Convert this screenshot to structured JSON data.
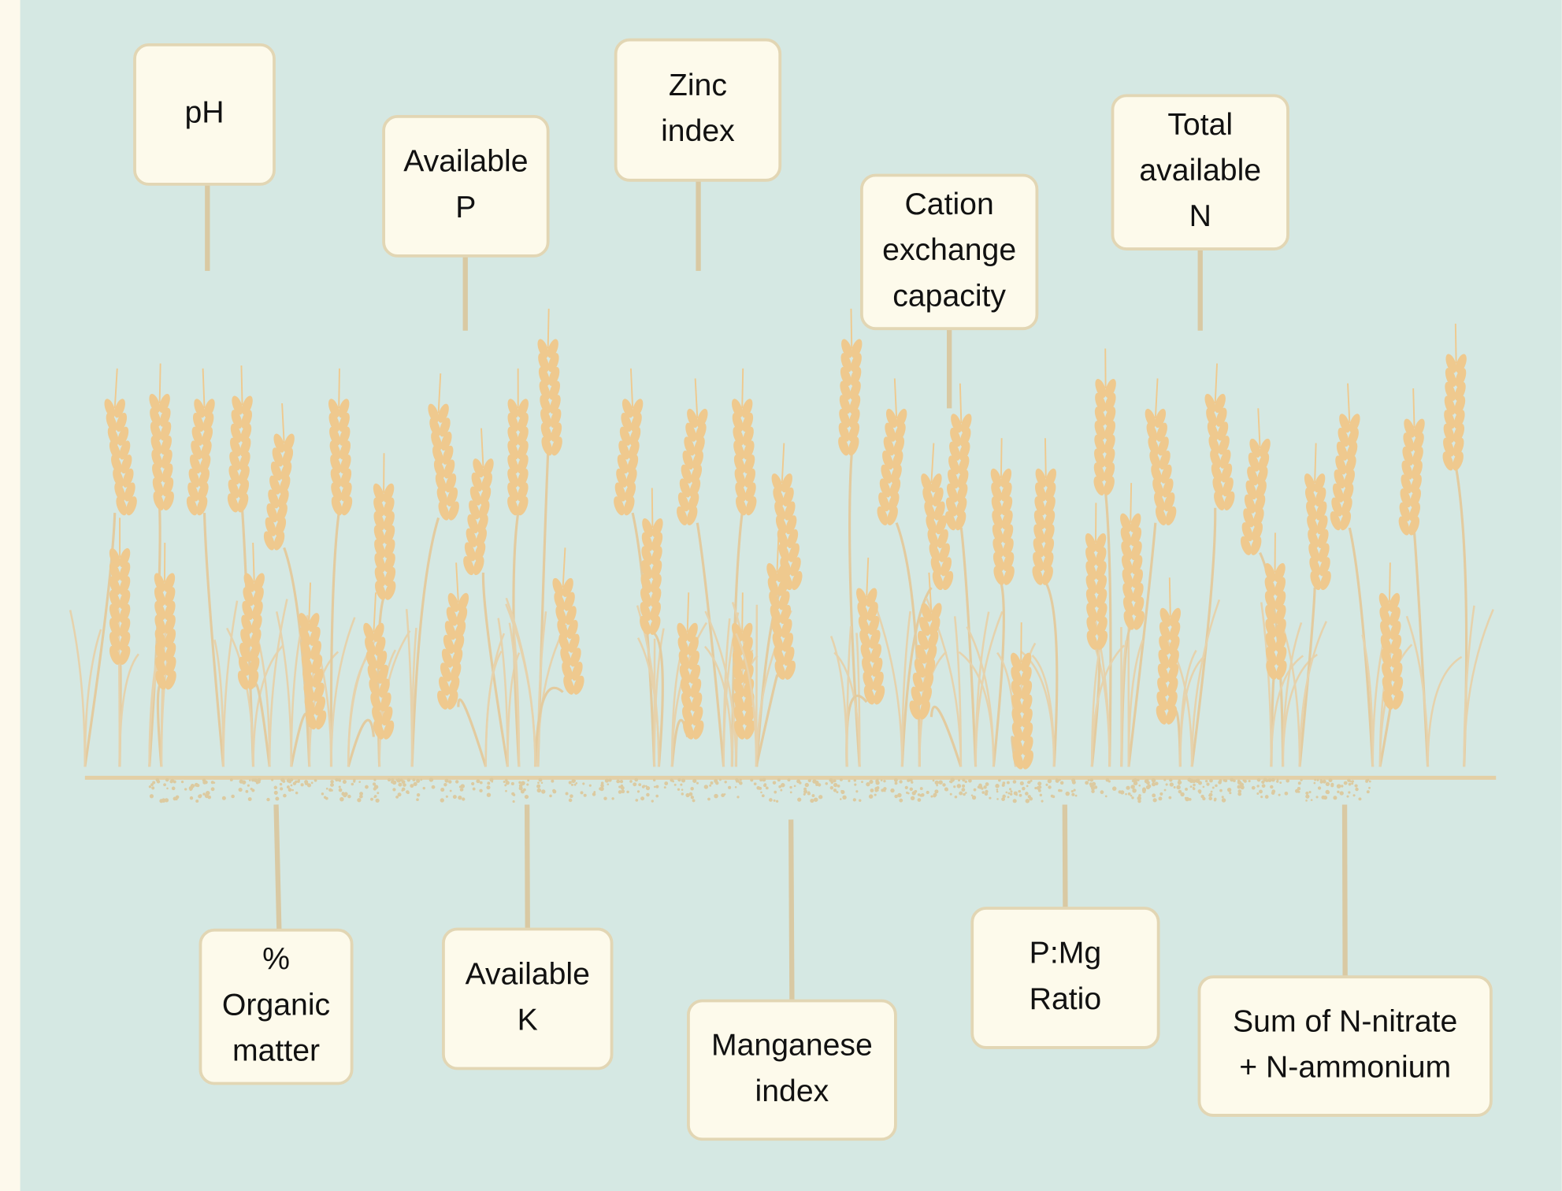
{
  "labels_top": [
    {
      "lines": [
        "pH"
      ]
    },
    {
      "lines": [
        "Available",
        "P"
      ]
    },
    {
      "lines": [
        "Zinc",
        "index"
      ]
    },
    {
      "lines": [
        "Cation",
        "exchange",
        "capacity"
      ]
    },
    {
      "lines": [
        "Total",
        "available",
        "N"
      ]
    }
  ],
  "labels_bottom": [
    {
      "lines": [
        "%",
        "Organic",
        "matter"
      ]
    },
    {
      "lines": [
        "Available",
        "K"
      ]
    },
    {
      "lines": [
        "Manganese",
        "index"
      ]
    },
    {
      "lines": [
        "P:Mg",
        "Ratio"
      ]
    },
    {
      "lines": [
        "Sum of N-nitrate",
        "+ N-ammonium"
      ]
    }
  ]
}
